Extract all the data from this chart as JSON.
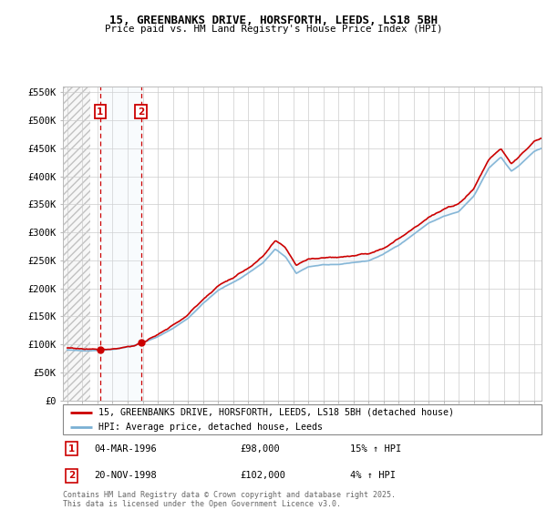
{
  "title_line1": "15, GREENBANKS DRIVE, HORSFORTH, LEEDS, LS18 5BH",
  "title_line2": "Price paid vs. HM Land Registry's House Price Index (HPI)",
  "legend_line1": "15, GREENBANKS DRIVE, HORSFORTH, LEEDS, LS18 5BH (detached house)",
  "legend_line2": "HPI: Average price, detached house, Leeds",
  "footer": "Contains HM Land Registry data © Crown copyright and database right 2025.\nThis data is licensed under the Open Government Licence v3.0.",
  "sale1_date": "04-MAR-1996",
  "sale1_price": "£98,000",
  "sale1_hpi": "15% ↑ HPI",
  "sale1_year": 1996.17,
  "sale1_value": 98000,
  "sale2_date": "20-NOV-1998",
  "sale2_price": "£102,000",
  "sale2_hpi": "4% ↑ HPI",
  "sale2_year": 1998.89,
  "sale2_value": 102000,
  "hpi_color": "#7ab0d4",
  "price_color": "#cc0000",
  "marker_box_color": "#cc0000",
  "shade_color": "#ddeaf4",
  "ylim": [
    0,
    560000
  ],
  "yticks": [
    0,
    50000,
    100000,
    150000,
    200000,
    250000,
    300000,
    350000,
    400000,
    450000,
    500000,
    550000
  ],
  "xlim_start": 1993.7,
  "xlim_end": 2025.5,
  "hatch_start": 1993.7,
  "hatch_end": 1995.5
}
